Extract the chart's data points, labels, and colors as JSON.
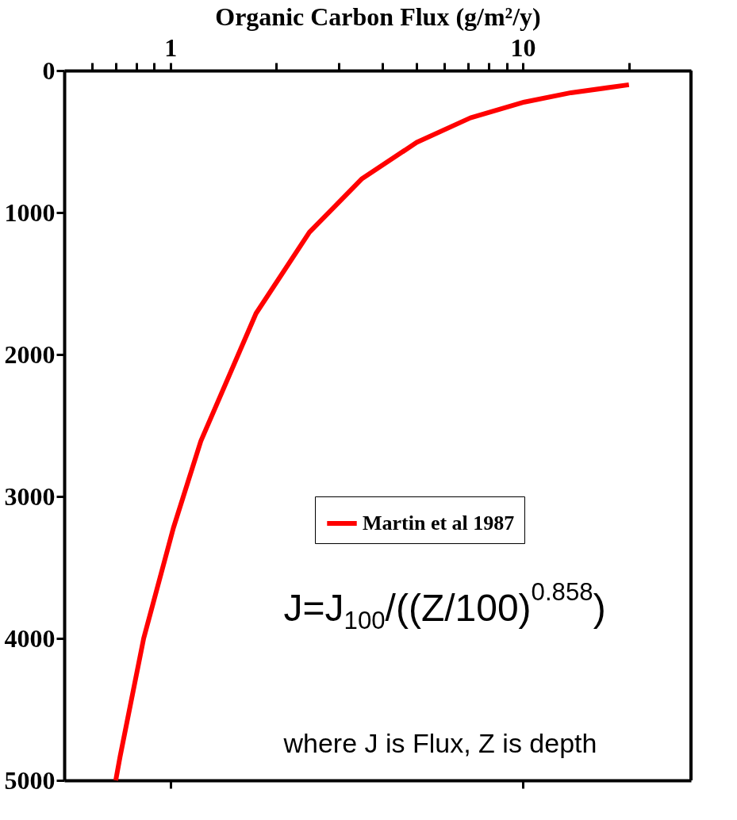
{
  "chart_data": {
    "type": "line",
    "xlabel": "Organic Carbon Flux (g/m²/y)",
    "log": "x",
    "xlim": [
      0.5,
      30
    ],
    "ylim": [
      5000,
      0
    ],
    "xticks": [
      {
        "value": 0.6,
        "label": null
      },
      {
        "value": 0.7,
        "label": null
      },
      {
        "value": 0.8,
        "label": null
      },
      {
        "value": 0.9,
        "label": null
      },
      1,
      {
        "value": 2,
        "label": null
      },
      {
        "value": 3,
        "label": null
      },
      {
        "value": 4,
        "label": null
      },
      {
        "value": 5,
        "label": null
      },
      {
        "value": 6,
        "label": null
      },
      {
        "value": 7,
        "label": null
      },
      {
        "value": 8,
        "label": null
      },
      {
        "value": 9,
        "label": null
      },
      10,
      {
        "value": 20,
        "label": null
      }
    ],
    "yticks": [
      0,
      1000,
      2000,
      3000,
      4000,
      5000
    ],
    "grid": false,
    "legend": "right",
    "marker": "none",
    "line_style": "solid",
    "series": [
      {
        "name": "Martin et al 1987",
        "color": "#ff0000",
        "x": [
          20,
          13.7,
          10.1,
          7.1,
          5.0,
          3.5,
          2.48,
          1.75,
          1.22,
          1.02,
          0.84,
          0.72,
          0.7
        ],
        "values": [
          100,
          156,
          222,
          333,
          506,
          761,
          1139,
          1711,
          2611,
          3222,
          4000,
          4833,
          5000
        ]
      }
    ],
    "annotations": [
      "J=J$_{100}$/((Z/100)$^{0.858}$)",
      "where J is Flux, Z is depth"
    ]
  }
}
